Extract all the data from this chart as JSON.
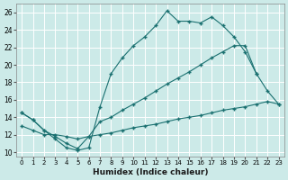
{
  "xlabel": "Humidex (Indice chaleur)",
  "xlim": [
    -0.5,
    23.5
  ],
  "ylim": [
    9.5,
    27.0
  ],
  "bg_color": "#cceae8",
  "line_color": "#1a7070",
  "grid_color": "#ffffff",
  "line1_x": [
    0,
    1,
    2,
    3,
    4,
    5,
    6,
    7,
    8,
    9,
    10,
    11,
    12,
    13,
    14,
    15,
    16,
    17,
    18,
    19,
    20,
    21
  ],
  "line1_y": [
    14.5,
    13.7,
    12.5,
    11.5,
    10.5,
    10.2,
    10.5,
    15.2,
    19.0,
    20.8,
    22.2,
    23.2,
    24.5,
    26.2,
    25.0,
    25.0,
    24.8,
    25.5,
    24.5,
    23.2,
    21.5,
    19.0
  ],
  "line2_x": [
    0,
    1,
    2,
    3,
    4,
    5,
    6,
    7,
    8,
    9,
    10,
    11,
    12,
    13,
    14,
    15,
    16,
    17,
    18,
    19,
    20,
    21,
    22,
    23
  ],
  "line2_y": [
    14.5,
    13.7,
    12.5,
    11.8,
    11.0,
    10.4,
    11.8,
    13.5,
    14.0,
    14.8,
    15.5,
    16.2,
    17.0,
    17.8,
    18.5,
    19.2,
    20.0,
    20.8,
    21.5,
    22.2,
    22.2,
    19.0,
    17.0,
    15.5
  ],
  "line3_x": [
    0,
    1,
    2,
    3,
    4,
    5,
    6,
    7,
    8,
    9,
    10,
    11,
    12,
    13,
    14,
    15,
    16,
    17,
    18,
    19,
    20,
    21,
    22,
    23
  ],
  "line3_y": [
    13.0,
    12.5,
    12.0,
    12.0,
    11.8,
    11.5,
    11.8,
    12.0,
    12.2,
    12.5,
    12.8,
    13.0,
    13.2,
    13.5,
    13.8,
    14.0,
    14.2,
    14.5,
    14.8,
    15.0,
    15.2,
    15.5,
    15.8,
    15.5
  ],
  "xticks": [
    0,
    1,
    2,
    3,
    4,
    5,
    6,
    7,
    8,
    9,
    10,
    11,
    12,
    13,
    14,
    15,
    16,
    17,
    18,
    19,
    20,
    21,
    22,
    23
  ],
  "yticks": [
    10,
    12,
    14,
    16,
    18,
    20,
    22,
    24,
    26
  ]
}
